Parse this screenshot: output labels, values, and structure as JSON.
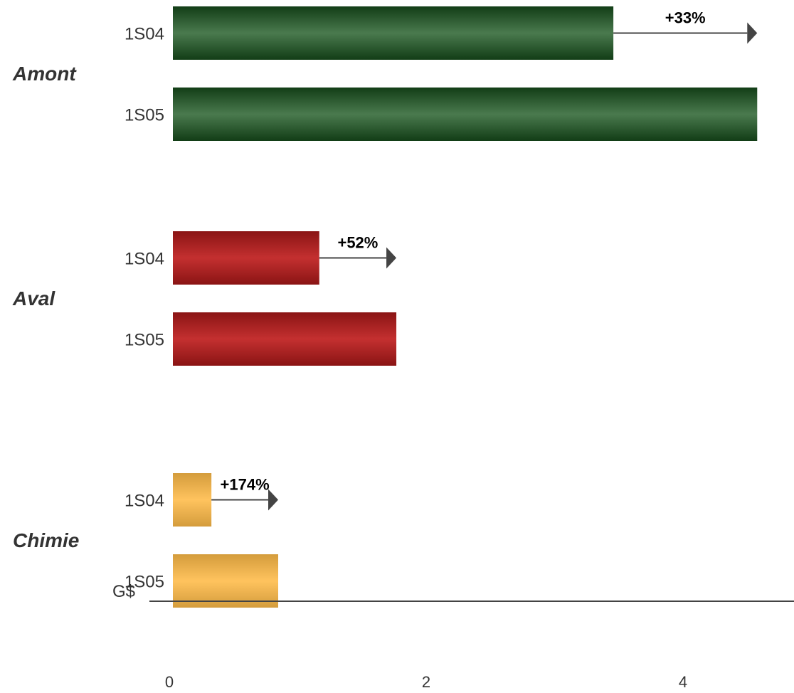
{
  "chart_data": {
    "type": "bar",
    "orientation": "horizontal",
    "unit_label": "G$",
    "x_ticks": [
      "0",
      "2",
      "4"
    ],
    "xlim": [
      0,
      4.9
    ],
    "groups": [
      {
        "name": "Amont",
        "color": "#2f5d34",
        "bars": [
          {
            "label": "1S04",
            "value": 3.43
          },
          {
            "label": "1S05",
            "value": 4.55
          }
        ],
        "change": "+33%"
      },
      {
        "name": "Aval",
        "color": "#a51e1e",
        "bars": [
          {
            "label": "1S04",
            "value": 1.14
          },
          {
            "label": "1S05",
            "value": 1.74
          }
        ],
        "change": "+52%"
      },
      {
        "name": "Chimie",
        "color": "#f4b24c",
        "bars": [
          {
            "label": "1S04",
            "value": 0.3
          },
          {
            "label": "1S05",
            "value": 0.82
          }
        ],
        "change": "+174%"
      }
    ],
    "gradients": {
      "Amont": {
        "dark": "#123d16",
        "light": "#4a7a4e"
      },
      "Aval": {
        "dark": "#8a1414",
        "light": "#c43030"
      },
      "Chimie": {
        "dark": "#d49c3c",
        "light": "#ffc35e"
      }
    },
    "axis_color": "#444444",
    "arrow_color": "#444444"
  }
}
